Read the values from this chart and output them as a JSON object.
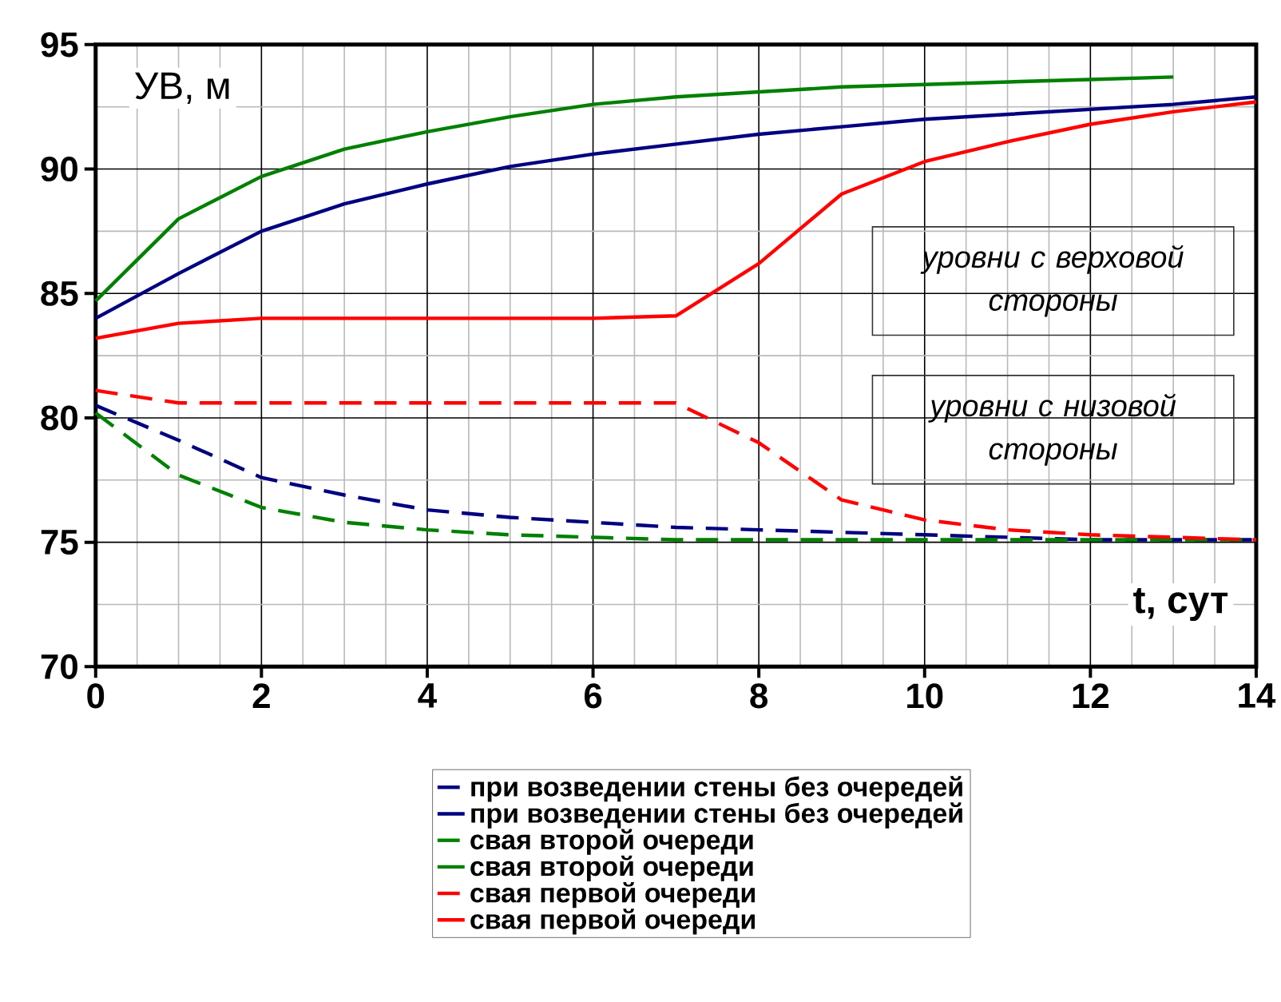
{
  "chart_data": {
    "type": "line",
    "xlabel": "t, сут",
    "ylabel": "УВ, м",
    "x": [
      0,
      1,
      2,
      3,
      4,
      5,
      6,
      7,
      8,
      9,
      10,
      11,
      12,
      13,
      14
    ],
    "series": [
      {
        "name": "при возведении стены без очередей",
        "color": "#000080",
        "line_style": "dashed",
        "values": [
          80.5,
          79.1,
          77.6,
          76.9,
          76.3,
          76.0,
          75.8,
          75.6,
          75.5,
          75.4,
          75.3,
          75.2,
          75.1,
          75.1,
          75.1
        ]
      },
      {
        "name": "при возведении стены без очередей",
        "color": "#000080",
        "line_style": "solid",
        "values": [
          84.0,
          85.8,
          87.5,
          88.6,
          89.4,
          90.1,
          90.6,
          91.0,
          91.4,
          91.7,
          92.0,
          92.2,
          92.4,
          92.6,
          92.9
        ]
      },
      {
        "name": "свая второй очереди",
        "color": "#008000",
        "line_style": "dashed",
        "values": [
          80.2,
          77.7,
          76.4,
          75.8,
          75.5,
          75.3,
          75.2,
          75.1,
          75.1,
          75.1,
          75.1,
          75.1,
          75.1,
          75.1,
          75.1
        ]
      },
      {
        "name": "свая второй очереди",
        "color": "#008000",
        "line_style": "solid",
        "values": [
          84.7,
          88.0,
          89.7,
          90.8,
          91.5,
          92.1,
          92.6,
          92.9,
          93.1,
          93.3,
          93.4,
          93.5,
          93.6,
          93.7,
          null
        ]
      },
      {
        "name": "свая первой очереди",
        "color": "#ff0000",
        "line_style": "dashed",
        "values": [
          81.1,
          80.6,
          80.6,
          80.6,
          80.6,
          80.6,
          80.6,
          80.6,
          79.0,
          76.7,
          75.9,
          75.5,
          75.3,
          75.2,
          75.1
        ]
      },
      {
        "name": "свая первой очереди",
        "color": "#ff0000",
        "line_style": "solid",
        "values": [
          83.2,
          83.8,
          84.0,
          84.0,
          84.0,
          84.0,
          84.0,
          84.1,
          86.2,
          89.0,
          90.3,
          91.1,
          91.8,
          92.3,
          92.7
        ]
      }
    ],
    "annotations": [
      "уровни с верховой стороны",
      "уровни с низовой стороны"
    ],
    "xlim": [
      0,
      14
    ],
    "xticks": [
      0,
      2,
      4,
      6,
      8,
      10,
      12,
      14
    ],
    "ylim": [
      70,
      95
    ],
    "yticks": [
      70,
      75,
      80,
      85,
      90,
      95
    ],
    "grid": true,
    "legend": "bottom",
    "marker": "none"
  }
}
